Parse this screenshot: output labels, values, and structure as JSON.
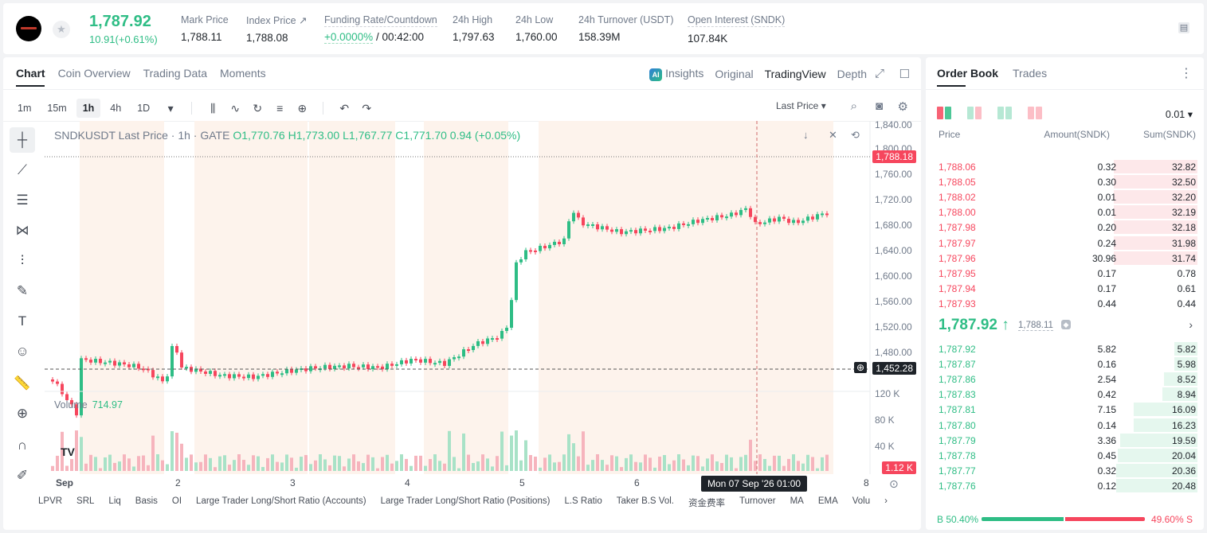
{
  "ticker": {
    "last_price": "1,787.92",
    "change": "10.91(+0.61%)",
    "stats": [
      {
        "label": "Mark Price",
        "value": "1,788.11"
      },
      {
        "label": "Index Price ↗",
        "value": "1,788.08"
      },
      {
        "label": "Funding Rate/Countdown",
        "value_rate": "+0.0000%",
        "value_countdown": "/ 00:42:00"
      },
      {
        "label": "24h High",
        "value": "1,797.63"
      },
      {
        "label": "24h Low",
        "value": "1,760.00"
      },
      {
        "label": "24h Turnover (USDT)",
        "value": "158.39M"
      },
      {
        "label": "Open Interest (SNDK)",
        "value": "107.84K"
      }
    ]
  },
  "chart_tabs": [
    "Chart",
    "Coin Overview",
    "Trading Data",
    "Moments"
  ],
  "view_tabs": {
    "ai": "AI",
    "insights": "Insights",
    "original": "Original",
    "tradingview": "TradingView",
    "depth": "Depth"
  },
  "intervals": [
    "1m",
    "15m",
    "1h",
    "4h",
    "1D"
  ],
  "last_price_select": "Last Price",
  "legend": {
    "symbol": "SNDKUSDT Last Price · 1h · GATE",
    "o": "O1,770.76",
    "h": "H1,773.00",
    "l": "L1,767.77",
    "c": "C1,771.70",
    "chg": "0.94 (+0.05%)"
  },
  "volume_legend": {
    "label": "Volume",
    "value": "714.97"
  },
  "tv_logo": "TV",
  "y_axis": [
    "1,840.00",
    "1,800.00",
    "1,760.00",
    "1,720.00",
    "1,680.00",
    "1,640.00",
    "1,600.00",
    "1,560.00",
    "1,520.00",
    "1,480.00"
  ],
  "price_tags": {
    "last": "1,788.18",
    "crosshair": "1,452.28",
    "volume": "1.12 K"
  },
  "vol_axis": [
    "120 K",
    "80 K",
    "40 K"
  ],
  "x_axis": [
    "Sep",
    "2",
    "3",
    "4",
    "5",
    "6",
    "8"
  ],
  "crosshair_time": "Mon 07 Sep '26   01:00",
  "indicators": [
    "LPVR",
    "SRL",
    "Liq",
    "Basis",
    "OI",
    "Large Trader Long/Short Ratio (Accounts)",
    "Large Trader Long/Short Ratio (Positions)",
    "L.S Ratio",
    "Taker B.S Vol.",
    "资金费率",
    "Turnover",
    "MA",
    "EMA",
    "Volu"
  ],
  "order_book": {
    "tabs": [
      "Order Book",
      "Trades"
    ],
    "precision": "0.01 ▾",
    "headers": {
      "price": "Price",
      "amount": "Amount(SNDK)",
      "sum": "Sum(SNDK)"
    },
    "asks": [
      {
        "price": "1,788.06",
        "amount": "0.32",
        "sum": "32.82",
        "depth": 1.0
      },
      {
        "price": "1,788.05",
        "amount": "0.30",
        "sum": "32.50",
        "depth": 1.0
      },
      {
        "price": "1,788.02",
        "amount": "0.01",
        "sum": "32.20",
        "depth": 1.0
      },
      {
        "price": "1,788.00",
        "amount": "0.01",
        "sum": "32.19",
        "depth": 1.0
      },
      {
        "price": "1,787.98",
        "amount": "0.20",
        "sum": "32.18",
        "depth": 1.0
      },
      {
        "price": "1,787.97",
        "amount": "0.24",
        "sum": "31.98",
        "depth": 1.0
      },
      {
        "price": "1,787.96",
        "amount": "30.96",
        "sum": "31.74",
        "depth": 1.0
      },
      {
        "price": "1,787.95",
        "amount": "0.17",
        "sum": "0.78",
        "depth": 0.0
      },
      {
        "price": "1,787.94",
        "amount": "0.17",
        "sum": "0.61",
        "depth": 0.0
      },
      {
        "price": "1,787.93",
        "amount": "0.44",
        "sum": "0.44",
        "depth": 0.0
      }
    ],
    "mid": {
      "price": "1,787.92 ↑",
      "mark": "1,788.11"
    },
    "bids": [
      {
        "price": "1,787.92",
        "amount": "5.82",
        "sum": "5.82",
        "depth": 0.28
      },
      {
        "price": "1,787.87",
        "amount": "0.16",
        "sum": "5.98",
        "depth": 0.28
      },
      {
        "price": "1,787.86",
        "amount": "2.54",
        "sum": "8.52",
        "depth": 0.4
      },
      {
        "price": "1,787.83",
        "amount": "0.42",
        "sum": "8.94",
        "depth": 0.42
      },
      {
        "price": "1,787.81",
        "amount": "7.15",
        "sum": "16.09",
        "depth": 0.76
      },
      {
        "price": "1,787.80",
        "amount": "0.14",
        "sum": "16.23",
        "depth": 0.76
      },
      {
        "price": "1,787.79",
        "amount": "3.36",
        "sum": "19.59",
        "depth": 0.92
      },
      {
        "price": "1,787.78",
        "amount": "0.45",
        "sum": "20.04",
        "depth": 0.95
      },
      {
        "price": "1,787.77",
        "amount": "0.32",
        "sum": "20.36",
        "depth": 0.97
      },
      {
        "price": "1,787.76",
        "amount": "0.12",
        "sum": "20.48",
        "depth": 0.97
      }
    ],
    "ratio": {
      "buy_label": "B 50.40%",
      "sell_label": "49.60% S",
      "buy": 0.504
    }
  },
  "colors": {
    "up": "#2ebd85",
    "down": "#f6465d",
    "text": "#1e2329",
    "muted": "#707a8a"
  }
}
